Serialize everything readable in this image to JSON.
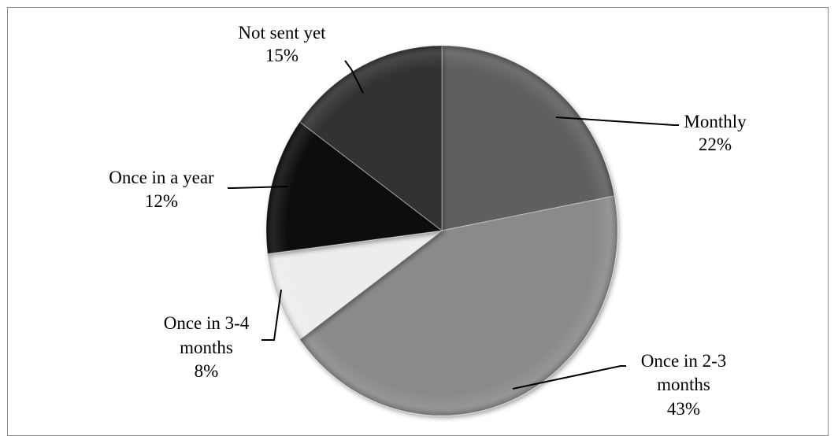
{
  "chart_data": {
    "type": "pie",
    "title": "",
    "slices": [
      {
        "label": "Monthly",
        "value": 22,
        "value_text": "22%",
        "color": "#5f5f5f"
      },
      {
        "label": "Once in 2-3 months",
        "value": 43,
        "value_text": "43%",
        "color": "#8a8a8a"
      },
      {
        "label": "Once in 3-4 months",
        "value": 8,
        "value_text": "8%",
        "color": "#ededed"
      },
      {
        "label": "Once in a year",
        "value": 12,
        "value_text": "12%",
        "color": "#0b0b0b"
      },
      {
        "label": "Not sent yet",
        "value": 15,
        "value_text": "15%",
        "color": "#333333"
      }
    ],
    "start_angle": "12 o'clock",
    "direction": "clockwise",
    "legend": "none",
    "data_labels": "category name and percentage, outside with leader lines"
  }
}
